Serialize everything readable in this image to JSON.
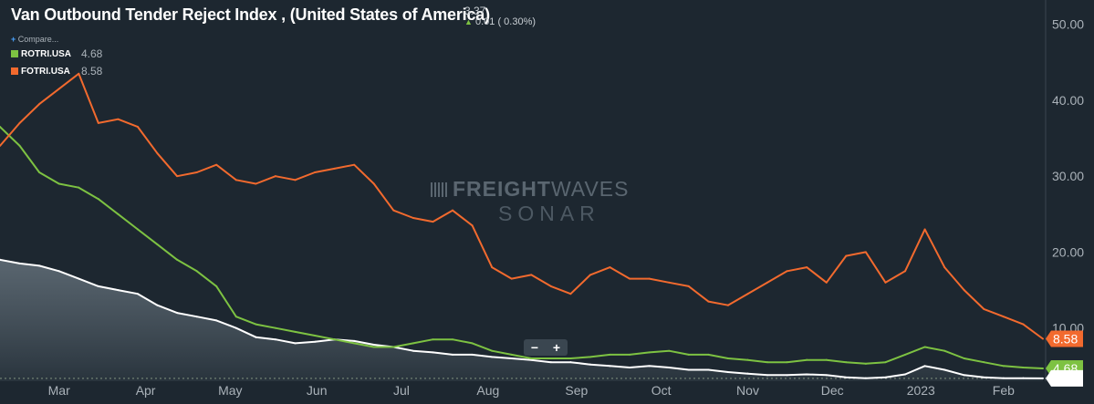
{
  "header": {
    "title": "Van Outbound Tender Reject Index , (United States of America)",
    "current_value": "3.37",
    "change_arrow": "▲",
    "change_text": "0.01 ( 0.30%)",
    "compare_plus": "+",
    "compare_label": "Compare..."
  },
  "legend": [
    {
      "name": "ROTRI.USA",
      "value": "4.68",
      "color": "#7dc242"
    },
    {
      "name": "FOTRI.USA",
      "value": "8.58",
      "color": "#f26a2e"
    }
  ],
  "zoom": {
    "minus": "−",
    "plus": "+"
  },
  "watermark": {
    "bold": "FREIGHT",
    "light": "WAVES",
    "sub": "SONAR"
  },
  "colors": {
    "background": "#1d2730",
    "van": "#ffffff",
    "reefer": "#7dc242",
    "flatbed": "#f26a2e",
    "grid": "#2f3a44"
  },
  "chart_data": {
    "type": "line",
    "title": "Van Outbound Tender Reject Index , (United States of America)",
    "x_tick_labels": [
      "Mar",
      "Apr",
      "May",
      "Jun",
      "Jul",
      "Aug",
      "Sep",
      "Oct",
      "Nov",
      "Dec",
      "2023",
      "Feb"
    ],
    "y_tick_labels": [
      "10.00",
      "20.00",
      "30.00",
      "40.00",
      "50.00"
    ],
    "ylim": [
      3,
      52
    ],
    "grid": false,
    "x": [
      "Feb 8",
      "Feb 15",
      "Feb 22",
      "Mar 1",
      "Mar 8",
      "Mar 15",
      "Mar 22",
      "Mar 29",
      "Apr 5",
      "Apr 12",
      "Apr 19",
      "Apr 26",
      "May 3",
      "May 10",
      "May 17",
      "May 24",
      "May 31",
      "Jun 7",
      "Jun 14",
      "Jun 21",
      "Jun 28",
      "Jul 5",
      "Jul 12",
      "Jul 19",
      "Jul 26",
      "Aug 2",
      "Aug 9",
      "Aug 16",
      "Aug 23",
      "Aug 30",
      "Sep 6",
      "Sep 13",
      "Sep 20",
      "Sep 27",
      "Oct 4",
      "Oct 11",
      "Oct 18",
      "Oct 25",
      "Nov 1",
      "Nov 8",
      "Nov 15",
      "Nov 22",
      "Nov 29",
      "Dec 6",
      "Dec 13",
      "Dec 20",
      "Dec 27",
      "Jan 3",
      "Jan 10",
      "Jan 17",
      "Jan 24",
      "Jan 31",
      "Feb 7",
      "Feb 14"
    ],
    "series": [
      {
        "name": "",
        "color": "#ffffff",
        "area": true,
        "end_label": "3.37",
        "values": [
          19.0,
          18.5,
          18.2,
          17.5,
          16.5,
          15.5,
          15.0,
          14.5,
          13.0,
          12.0,
          11.5,
          11.0,
          10.0,
          8.8,
          8.5,
          8.0,
          8.2,
          8.5,
          8.3,
          7.8,
          7.5,
          7.0,
          6.8,
          6.5,
          6.5,
          6.2,
          6.0,
          5.8,
          5.5,
          5.5,
          5.2,
          5.0,
          4.8,
          5.0,
          4.8,
          4.5,
          4.5,
          4.2,
          4.0,
          3.8,
          3.8,
          3.9,
          3.8,
          3.5,
          3.4,
          3.5,
          3.9,
          5.0,
          4.5,
          3.8,
          3.5,
          3.4,
          3.4,
          3.37
        ]
      },
      {
        "name": "ROTRI.USA",
        "color": "#7dc242",
        "area": false,
        "end_label": "4.68",
        "values": [
          36.5,
          34.0,
          30.5,
          29.0,
          28.5,
          27.0,
          25.0,
          23.0,
          21.0,
          19.0,
          17.5,
          15.5,
          11.5,
          10.5,
          10.0,
          9.5,
          9.0,
          8.5,
          8.0,
          7.5,
          7.5,
          8.0,
          8.5,
          8.5,
          8.0,
          7.0,
          6.5,
          6.0,
          6.0,
          6.0,
          6.2,
          6.5,
          6.5,
          6.8,
          7.0,
          6.5,
          6.5,
          6.0,
          5.8,
          5.5,
          5.5,
          5.8,
          5.8,
          5.5,
          5.3,
          5.5,
          6.5,
          7.5,
          7.0,
          6.0,
          5.5,
          5.0,
          4.8,
          4.68
        ]
      },
      {
        "name": "FOTRI.USA",
        "color": "#f26a2e",
        "area": false,
        "end_label": "8.58",
        "values": [
          34.0,
          37.0,
          39.5,
          41.5,
          43.5,
          37.0,
          37.5,
          36.5,
          33.0,
          30.0,
          30.5,
          31.5,
          29.5,
          29.0,
          30.0,
          29.5,
          30.5,
          31.0,
          31.5,
          29.0,
          25.5,
          24.5,
          24.0,
          25.5,
          23.5,
          18.0,
          16.5,
          17.0,
          15.5,
          14.5,
          17.0,
          18.0,
          16.5,
          16.5,
          16.0,
          15.5,
          13.5,
          13.0,
          14.5,
          16.0,
          17.5,
          18.0,
          16.0,
          19.5,
          20.0,
          16.0,
          17.5,
          23.0,
          18.0,
          15.0,
          12.5,
          11.5,
          10.5,
          8.58
        ]
      }
    ]
  }
}
